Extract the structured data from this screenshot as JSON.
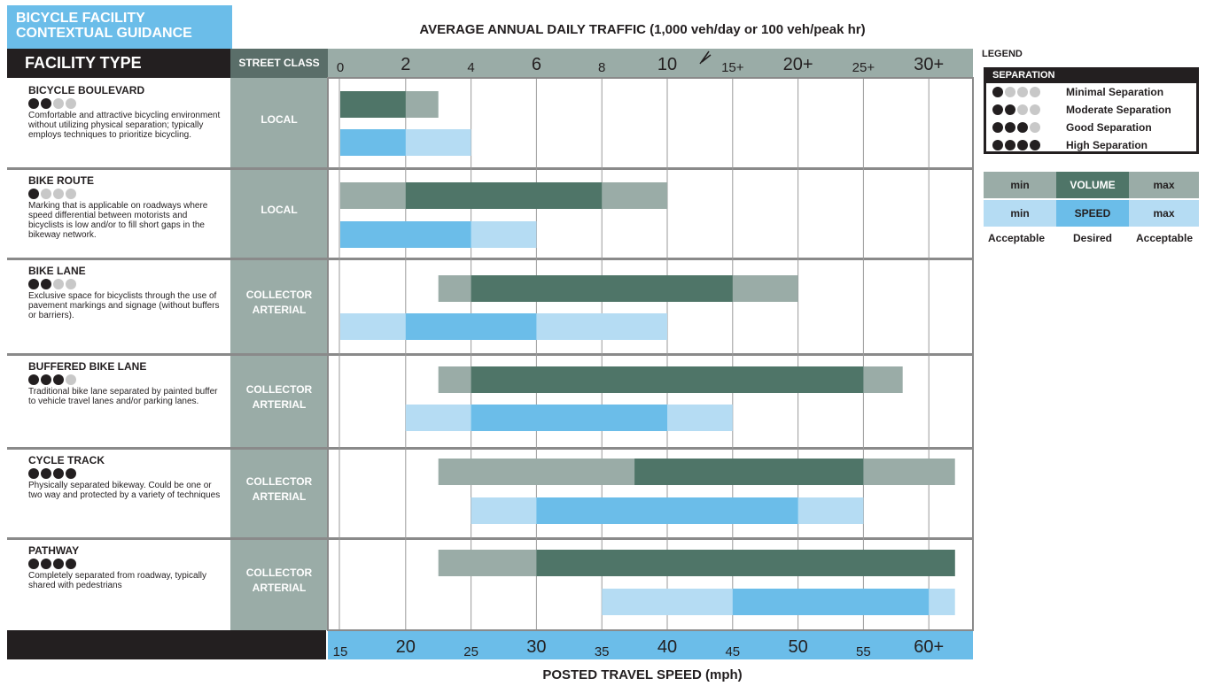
{
  "header": {
    "title_line1": "BICYCLE FACILITY",
    "title_line2": "CONTEXTUAL GUIDANCE",
    "facility_type_label": "FACILITY TYPE",
    "street_class_label": "STREET CLASS"
  },
  "legend": {
    "title": "LEGEND",
    "separation_header": "SEPARATION",
    "items": [
      {
        "dots": 1,
        "label": "Minimal Separation"
      },
      {
        "dots": 2,
        "label": "Moderate Separation"
      },
      {
        "dots": 3,
        "label": "Good Separation"
      },
      {
        "dots": 4,
        "label": "High Separation"
      }
    ],
    "key": {
      "volume_min": "min",
      "volume_label": "VOLUME",
      "volume_max": "max",
      "speed_min": "min",
      "speed_label": "SPEED",
      "speed_max": "max",
      "foot_left": "Acceptable",
      "foot_mid": "Desired",
      "foot_right": "Acceptable"
    }
  },
  "colors": {
    "volume_desired": "#4f7568",
    "volume_acceptable": "#9aaca7",
    "speed_desired": "#6bbde9",
    "speed_acceptable": "#b5dcf3",
    "axis_bg": "#9aaca7",
    "speed_axis_bg": "#6bbde9",
    "dark": "#231f20"
  },
  "facilities": [
    {
      "name": "BICYCLE BOULEVARD",
      "dots": 2,
      "description": "Comfortable and attractive bicycling environment without utilizing physical separation; typically employs techniques to prioritize bicycling.",
      "street_class": [
        "LOCAL"
      ]
    },
    {
      "name": "BIKE ROUTE",
      "dots": 1,
      "description": "Marking that is applicable on roadways where speed differential between motorists and bicyclists is low and/or to fill short gaps in the bikeway network.",
      "street_class": [
        "LOCAL"
      ]
    },
    {
      "name": "BIKE LANE",
      "dots": 2,
      "description": "Exclusive space for bicyclists through the use of pavement markings and signage (without buffers or barriers).",
      "street_class": [
        "COLLECTOR",
        "ARTERIAL"
      ]
    },
    {
      "name": "BUFFERED BIKE LANE",
      "dots": 3,
      "description": "Traditional bike lane separated by painted buffer to vehicle travel lanes and/or parking lanes.",
      "street_class": [
        "COLLECTOR",
        "ARTERIAL"
      ]
    },
    {
      "name": "CYCLE TRACK",
      "dots": 4,
      "description": "Physically separated bikeway. Could be one or two way and protected by a variety of techniques",
      "street_class": [
        "COLLECTOR",
        "ARTERIAL"
      ]
    },
    {
      "name": "PATHWAY",
      "dots": 4,
      "description": "Completely separated from roadway, typically shared with pedestrians",
      "street_class": [
        "COLLECTOR",
        "ARTERIAL"
      ]
    }
  ],
  "chart_data": {
    "type": "bar",
    "title": "AVERAGE ANNUAL DAILY TRAFFIC (1,000 veh/day or 100 veh/peak hr)",
    "xlabel_bottom": "POSTED TRAVEL SPEED (mph)",
    "traffic_ticks": [
      {
        "label": "0",
        "major": false
      },
      {
        "label": "2",
        "major": true
      },
      {
        "label": "4",
        "major": false
      },
      {
        "label": "6",
        "major": true
      },
      {
        "label": "8",
        "major": false
      },
      {
        "label": "10",
        "major": true
      },
      {
        "label": "15+",
        "major": false
      },
      {
        "label": "20+",
        "major": true
      },
      {
        "label": "25+",
        "major": false
      },
      {
        "label": "30+",
        "major": true
      }
    ],
    "speed_ticks": [
      {
        "label": "15",
        "major": false
      },
      {
        "label": "20",
        "major": true
      },
      {
        "label": "25",
        "major": false
      },
      {
        "label": "30",
        "major": true
      },
      {
        "label": "35",
        "major": false
      },
      {
        "label": "40",
        "major": true
      },
      {
        "label": "45",
        "major": false
      },
      {
        "label": "50",
        "major": true
      },
      {
        "label": "55",
        "major": false
      },
      {
        "label": "60+",
        "major": true
      }
    ],
    "series": [
      {
        "facility": "BICYCLE BOULEVARD",
        "volume": {
          "acceptable_min": 0,
          "desired_min": 0,
          "desired_max": 2,
          "acceptable_max": 3
        },
        "speed": {
          "acceptable_min": 15,
          "desired_min": 15,
          "desired_max": 20,
          "acceptable_max": 25
        }
      },
      {
        "facility": "BIKE ROUTE",
        "volume": {
          "acceptable_min": 0,
          "desired_min": 2,
          "desired_max": 8,
          "acceptable_max": 10
        },
        "speed": {
          "acceptable_min": 15,
          "desired_min": 15,
          "desired_max": 25,
          "acceptable_max": 30
        }
      },
      {
        "facility": "BIKE LANE",
        "volume": {
          "acceptable_min": 3,
          "desired_min": 4,
          "desired_max": 15,
          "acceptable_max": 20
        },
        "speed": {
          "acceptable_min": 15,
          "desired_min": 20,
          "desired_max": 30,
          "acceptable_max": 40
        }
      },
      {
        "facility": "BUFFERED BIKE LANE",
        "volume": {
          "acceptable_min": 3,
          "desired_min": 4,
          "desired_max": 25,
          "acceptable_max": 28
        },
        "speed": {
          "acceptable_min": 20,
          "desired_min": 25,
          "desired_max": 40,
          "acceptable_max": 45
        }
      },
      {
        "facility": "CYCLE TRACK",
        "volume": {
          "acceptable_min": 3,
          "desired_min": 9,
          "desired_max": 25,
          "acceptable_max": 32
        },
        "speed": {
          "acceptable_min": 25,
          "desired_min": 30,
          "desired_max": 50,
          "acceptable_max": 55
        }
      },
      {
        "facility": "PATHWAY",
        "volume": {
          "acceptable_min": 3,
          "desired_min": 6,
          "desired_max": 32,
          "acceptable_max": 32
        },
        "speed": {
          "acceptable_min": 35,
          "desired_min": 45,
          "desired_max": 60,
          "acceptable_max": 62
        }
      }
    ]
  }
}
